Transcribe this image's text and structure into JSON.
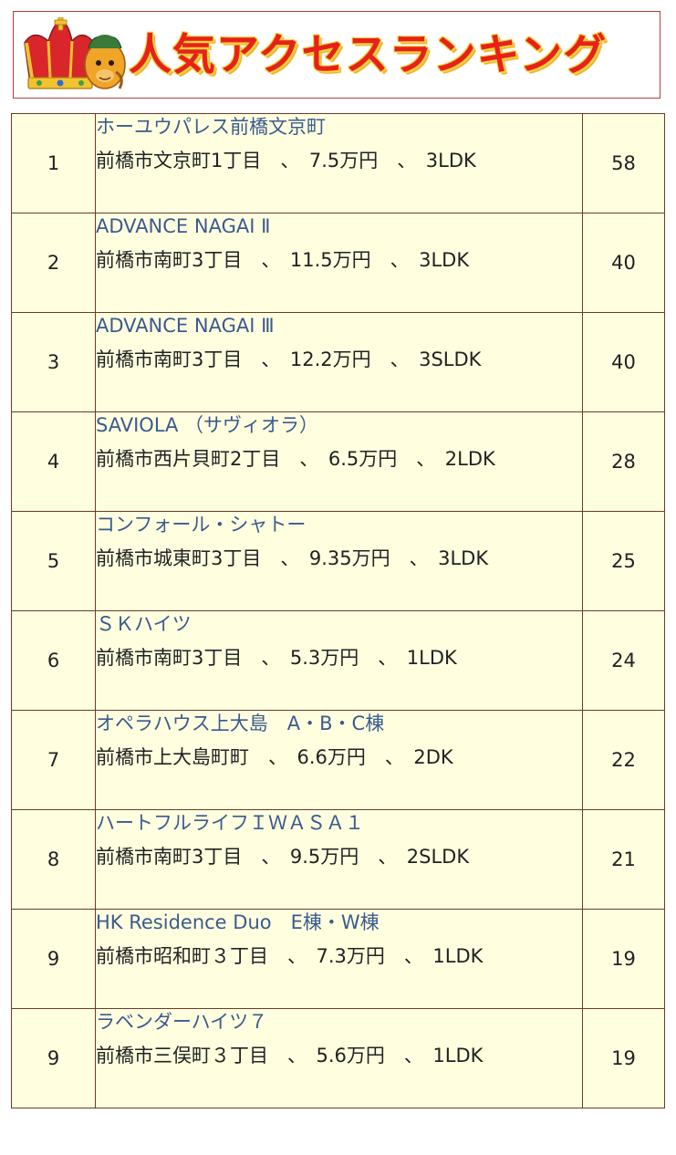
{
  "banner": {
    "title": "人気アクセスランキング",
    "icon": "crown-mascot-icon",
    "colors": {
      "title": "#e8201a",
      "title_outline": "#f7d23a",
      "border": "#b0413e"
    }
  },
  "table": {
    "colors": {
      "background": "#ffffe0",
      "border": "#6b3a2a",
      "link": "#3b5a8e",
      "text": "#222222"
    },
    "rows": [
      {
        "rank": "1",
        "name": "ホーユウパレス前橋文京町",
        "details": "前橋市文京町1丁目　、　7.5万円　、　3LDK",
        "count": "58"
      },
      {
        "rank": "2",
        "name": "ADVANCE NAGAI Ⅱ",
        "details": "前橋市南町3丁目　、　11.5万円　、　3LDK",
        "count": "40"
      },
      {
        "rank": "3",
        "name": "ADVANCE NAGAI Ⅲ",
        "details": "前橋市南町3丁目　、　12.2万円　、　3SLDK",
        "count": "40"
      },
      {
        "rank": "4",
        "name": "SAVIOLA （サヴィオラ）",
        "details": "前橋市西片貝町2丁目　、　6.5万円　、　2LDK",
        "count": "28"
      },
      {
        "rank": "5",
        "name": "コンフォール・シャトー",
        "details": "前橋市城東町3丁目　、　9.35万円　、　3LDK",
        "count": "25"
      },
      {
        "rank": "6",
        "name": "ＳＫハイツ",
        "details": "前橋市南町3丁目　、　5.3万円　、　1LDK",
        "count": "24"
      },
      {
        "rank": "7",
        "name": "オペラハウス上大島　A・B・C棟",
        "details": "前橋市上大島町町　、　6.6万円　、　2DK",
        "count": "22"
      },
      {
        "rank": "8",
        "name": "ハートフルライフＩＷＡＳＡ１",
        "details": "前橋市南町3丁目　、　9.5万円　、　2SLDK",
        "count": "21"
      },
      {
        "rank": "9",
        "name": "HK Residence Duo　E棟・W棟",
        "details": "前橋市昭和町３丁目　、　7.3万円　、　1LDK",
        "count": "19"
      },
      {
        "rank": "9",
        "name": "ラベンダーハイツ７",
        "details": "前橋市三俣町３丁目　、　5.6万円　、　1LDK",
        "count": "19"
      }
    ]
  }
}
